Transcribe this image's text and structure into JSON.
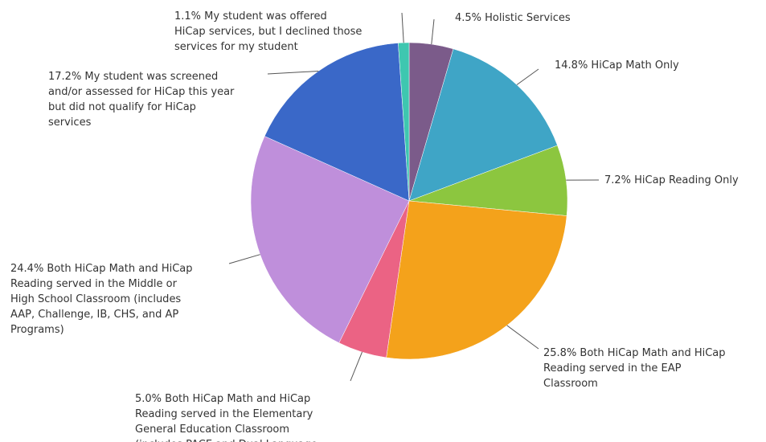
{
  "chart_data": {
    "type": "pie",
    "title": "",
    "slices": [
      {
        "value": 4.5,
        "color": "#7b5b8a",
        "label_lines": [
          "4.5% Holistic Services"
        ]
      },
      {
        "value": 14.8,
        "color": "#3fa5c6",
        "label_lines": [
          "14.8% HiCap Math Only"
        ]
      },
      {
        "value": 7.2,
        "color": "#8cc63f",
        "label_lines": [
          "7.2% HiCap Reading Only"
        ]
      },
      {
        "value": 25.8,
        "color": "#f4a21b",
        "label_lines": [
          "25.8% Both HiCap Math and HiCap",
          "Reading served in the EAP",
          "Classroom"
        ]
      },
      {
        "value": 5.0,
        "color": "#eb6384",
        "label_lines": [
          "5.0% Both HiCap Math and HiCap",
          "Reading served in the Elementary",
          "General Education Classroom",
          "(includes PACE and Dual Language"
        ]
      },
      {
        "value": 24.4,
        "color": "#bf8fdb",
        "label_lines": [
          "24.4% Both HiCap Math and HiCap",
          "Reading served in the Middle or",
          "High School Classroom (includes",
          "AAP, Challenge, IB, CHS, and AP",
          "Programs)"
        ]
      },
      {
        "value": 17.2,
        "color": "#3a68c8",
        "label_lines": [
          "17.2% My student was screened",
          "and/or assessed for HiCap this year",
          "but did not qualify for HiCap",
          "services"
        ]
      },
      {
        "value": 1.1,
        "color": "#3ec7b0",
        "label_lines": [
          "1.1% My student was offered",
          "HiCap services, but I declined those",
          "services for my student"
        ]
      }
    ]
  }
}
